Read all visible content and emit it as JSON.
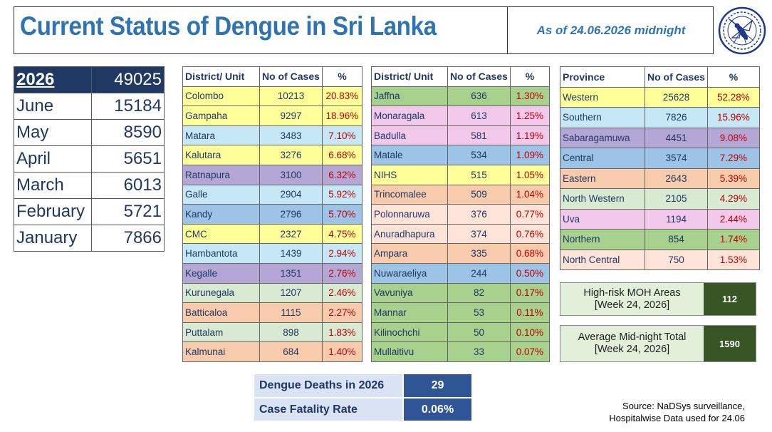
{
  "header": {
    "title": "Current Status of Dengue in Sri Lanka",
    "as_of": "As of 24.06.2026 midnight"
  },
  "logo": {
    "icon": "mosquito-emblem-icon"
  },
  "monthly": {
    "year_label": "2026",
    "year_total": "49025",
    "rows": [
      {
        "month": "June",
        "cases": "15184"
      },
      {
        "month": "May",
        "cases": "8590"
      },
      {
        "month": "April",
        "cases": "5651"
      },
      {
        "month": "March",
        "cases": "6013"
      },
      {
        "month": "February",
        "cases": "5721"
      },
      {
        "month": "January",
        "cases": "7866"
      }
    ]
  },
  "district_headers": {
    "unit": "District/ Unit",
    "cases": "No of Cases",
    "pct": "%"
  },
  "districts_left": [
    {
      "name": "Colombo",
      "cases": "10213",
      "pct": "20.83%",
      "color": "#ffff99"
    },
    {
      "name": "Gampaha",
      "cases": "9297",
      "pct": "18.96%",
      "color": "#ffff99"
    },
    {
      "name": "Matara",
      "cases": "3483",
      "pct": "7.10%",
      "color": "#c6e7f5"
    },
    {
      "name": "Kalutara",
      "cases": "3276",
      "pct": "6.68%",
      "color": "#ffff99"
    },
    {
      "name": "Ratnapura",
      "cases": "3100",
      "pct": "6.32%",
      "color": "#b4a7d6"
    },
    {
      "name": "Galle",
      "cases": "2904",
      "pct": "5.92%",
      "color": "#c6e7f5"
    },
    {
      "name": "Kandy",
      "cases": "2796",
      "pct": "5.70%",
      "color": "#9dc3e6"
    },
    {
      "name": "CMC",
      "cases": "2327",
      "pct": "4.75%",
      "color": "#ffff99"
    },
    {
      "name": "Hambantota",
      "cases": "1439",
      "pct": "2.94%",
      "color": "#c6e7f5"
    },
    {
      "name": "Kegalle",
      "cases": "1351",
      "pct": "2.76%",
      "color": "#b4a7d6"
    },
    {
      "name": "Kurunegala",
      "cases": "1207",
      "pct": "2.46%",
      "color": "#d9ead3"
    },
    {
      "name": "Batticaloa",
      "cases": "1115",
      "pct": "2.27%",
      "color": "#f8cbad"
    },
    {
      "name": "Puttalam",
      "cases": "898",
      "pct": "1.83%",
      "color": "#d9ead3"
    },
    {
      "name": "Kalmunai",
      "cases": "684",
      "pct": "1.40%",
      "color": "#f8cbad"
    }
  ],
  "districts_right": [
    {
      "name": "Jaffna",
      "cases": "636",
      "pct": "1.30%",
      "color": "#a9d18e"
    },
    {
      "name": "Monaragala",
      "cases": "613",
      "pct": "1.25%",
      "color": "#f2c9ea"
    },
    {
      "name": "Badulla",
      "cases": "581",
      "pct": "1.19%",
      "color": "#f2c9ea"
    },
    {
      "name": "Matale",
      "cases": "534",
      "pct": "1.09%",
      "color": "#9dc3e6"
    },
    {
      "name": "NIHS",
      "cases": "515",
      "pct": "1.05%",
      "color": "#ffff99"
    },
    {
      "name": "Trincomalee",
      "cases": "509",
      "pct": "1.04%",
      "color": "#f8cbad"
    },
    {
      "name": "Polonnaruwa",
      "cases": "376",
      "pct": "0.77%",
      "color": "#fde3d8"
    },
    {
      "name": "Anuradhapura",
      "cases": "374",
      "pct": "0.76%",
      "color": "#fde3d8"
    },
    {
      "name": "Ampara",
      "cases": "335",
      "pct": "0.68%",
      "color": "#f8cbad"
    },
    {
      "name": "Nuwaraeliya",
      "cases": "244",
      "pct": "0.50%",
      "color": "#9dc3e6"
    },
    {
      "name": "Vavuniya",
      "cases": "82",
      "pct": "0.17%",
      "color": "#a9d18e"
    },
    {
      "name": "Mannar",
      "cases": "53",
      "pct": "0.11%",
      "color": "#a9d18e"
    },
    {
      "name": "Kilinochchi",
      "cases": "50",
      "pct": "0.10%",
      "color": "#a9d18e"
    },
    {
      "name": "Mullaitivu",
      "cases": "33",
      "pct": "0.07%",
      "color": "#a9d18e"
    }
  ],
  "province_headers": {
    "unit": "Province",
    "cases": "No of Cases",
    "pct": "%"
  },
  "provinces": [
    {
      "name": "Western",
      "cases": "25628",
      "pct": "52.28%",
      "color": "#ffff99"
    },
    {
      "name": "Southern",
      "cases": "7826",
      "pct": "15.96%",
      "color": "#c6e7f5"
    },
    {
      "name": "Sabaragamuwa",
      "cases": "4451",
      "pct": "9.08%",
      "color": "#b4a7d6"
    },
    {
      "name": "Central",
      "cases": "3574",
      "pct": "7.29%",
      "color": "#9dc3e6"
    },
    {
      "name": "Eastern",
      "cases": "2643",
      "pct": "5.39%",
      "color": "#f8cbad"
    },
    {
      "name": "North Western",
      "cases": "2105",
      "pct": "4.29%",
      "color": "#d9ead3"
    },
    {
      "name": "Uva",
      "cases": "1194",
      "pct": "2.44%",
      "color": "#f2c9ea"
    },
    {
      "name": "Northern",
      "cases": "854",
      "pct": "1.74%",
      "color": "#a9d18e"
    },
    {
      "name": "North Central",
      "cases": "750",
      "pct": "1.53%",
      "color": "#fde3d8"
    }
  ],
  "high_risk": {
    "line1": "High-risk MOH Areas",
    "line2": "[Week 24, 2026]",
    "value": "112"
  },
  "midnight_total": {
    "line1": "Average Mid-night Total",
    "line2": "[Week 24, 2026]",
    "value": "1590"
  },
  "deaths": {
    "label": "Dengue Deaths in 2026",
    "value": "29",
    "cfr_label": "Case Fatality Rate",
    "cfr_value": "0.06%"
  },
  "source": {
    "line1": "Source: NaDSys surveillance,",
    "line2": "Hospitalwise Data used for 24.06"
  }
}
